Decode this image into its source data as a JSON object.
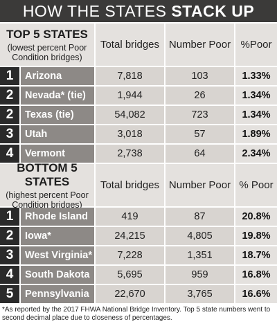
{
  "header": {
    "title_regular": "HOW THE STATES",
    "title_bold": "STACK UP"
  },
  "sections": [
    {
      "title": "TOP 5 STATES",
      "subtitle": "(lowest percent Poor Condition bridges)",
      "columns": [
        "Total bridges",
        "Number Poor",
        "%Poor"
      ],
      "rows": [
        [
          "1",
          "Arizona",
          "7,818",
          "103",
          "1.33%"
        ],
        [
          "2",
          "Nevada* (tie)",
          "1,944",
          "26",
          "1.34%"
        ],
        [
          "2",
          "Texas (tie)",
          "54,082",
          "723",
          "1.34%"
        ],
        [
          "3",
          "Utah",
          "3,018",
          "57",
          "1.89%"
        ],
        [
          "4",
          "Vermont",
          "2,738",
          "64",
          "2.34%"
        ]
      ]
    },
    {
      "title": "BOTTOM 5 STATES",
      "subtitle": "(highest percent Poor Condition bridges)",
      "columns": [
        "Total bridges",
        "Number Poor",
        "% Poor"
      ],
      "rows": [
        [
          "1",
          "Rhode Island",
          "419",
          "87",
          "20.8%"
        ],
        [
          "2",
          "Iowa*",
          "24,215",
          "4,805",
          "19.8%"
        ],
        [
          "3",
          "West Virginia*",
          "7,228",
          "1,351",
          "18.7%"
        ],
        [
          "4",
          "South Dakota",
          "5,695",
          "959",
          "16.8%"
        ],
        [
          "5",
          "Pennsylvania",
          "22,670",
          "3,765",
          "16.6%"
        ]
      ]
    }
  ],
  "footnote": "*As reported by the 2017 FHWA National Bridge Inventory. Top 5 state numbers went to second decimal place due to closeness of percentages."
}
